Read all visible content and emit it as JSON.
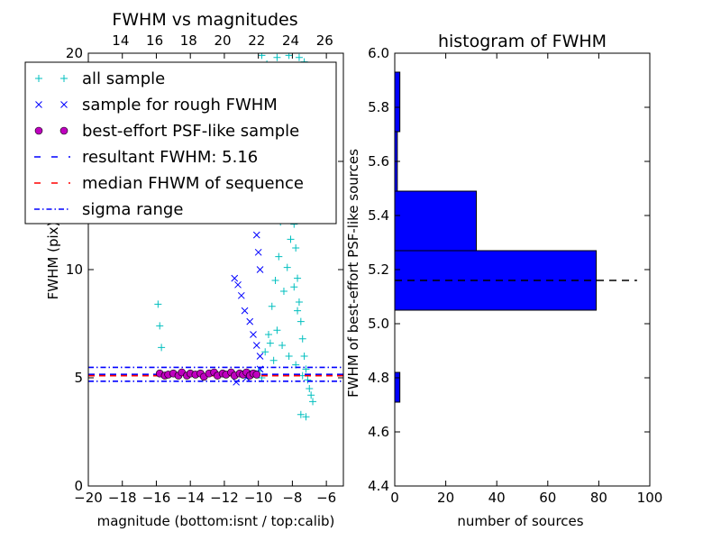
{
  "chart_data": [
    {
      "type": "scatter",
      "title": "FWHM vs magnitudes",
      "xlabel": "magnitude (bottom:isnt / top:calib)",
      "ylabel": "FWHM (pix)",
      "xlim": [
        -20,
        -5
      ],
      "ylim": [
        0,
        20
      ],
      "xticks": [
        "−20",
        "−18",
        "−16",
        "−14",
        "−12",
        "−10",
        "−8",
        "−6"
      ],
      "xtick_values": [
        -20,
        -18,
        -16,
        -14,
        -12,
        -10,
        -8,
        -6
      ],
      "yticks": [
        "0",
        "5",
        "10",
        "15",
        "20"
      ],
      "ytick_values": [
        0,
        5,
        10,
        15,
        20
      ],
      "top_xticks": [
        "14",
        "16",
        "18",
        "20",
        "22",
        "24",
        "26"
      ],
      "top_xtick_values": [
        -18.1,
        -16.1,
        -14.1,
        -12.1,
        -10.1,
        -8.1,
        -6.1
      ],
      "legend_position": "upper-left",
      "legend": [
        {
          "label": "all sample",
          "marker": "+",
          "color": "#00bfbf"
        },
        {
          "label": "sample for rough FWHM",
          "marker": "x",
          "color": "#0000ff"
        },
        {
          "label": "best-effort PSF-like sample",
          "marker": "o",
          "color": "#bf00bf"
        },
        {
          "label": "resultant FWHM: 5.16",
          "line": "dashed",
          "color": "#0000ff"
        },
        {
          "label": "median FHWM of sequence",
          "line": "dashed",
          "color": "#ff0000"
        },
        {
          "label": "sigma range",
          "line": "dashdot",
          "color": "#0000ff"
        }
      ],
      "series": [
        {
          "name": "all sample",
          "points": [
            [
              -15.9,
              8.4
            ],
            [
              -15.8,
              7.4
            ],
            [
              -15.7,
              6.4
            ],
            [
              -9.8,
              19.9
            ],
            [
              -9.5,
              19.5
            ],
            [
              -8.9,
              19.8
            ],
            [
              -8.2,
              19.9
            ],
            [
              -7.6,
              19.8
            ],
            [
              -7.3,
              19.6
            ],
            [
              -10.0,
              5.3
            ],
            [
              -9.8,
              5.0
            ],
            [
              -9.6,
              6.2
            ],
            [
              -9.4,
              7.0
            ],
            [
              -9.2,
              8.3
            ],
            [
              -9.0,
              9.5
            ],
            [
              -8.8,
              10.6
            ],
            [
              -8.7,
              12.2
            ],
            [
              -8.6,
              13.5
            ],
            [
              -8.5,
              14.8
            ],
            [
              -8.4,
              16.5
            ],
            [
              -8.3,
              18.2
            ],
            [
              -8.2,
              17.1
            ],
            [
              -8.1,
              15.6
            ],
            [
              -8.0,
              13.8
            ],
            [
              -7.9,
              12.1
            ],
            [
              -7.8,
              11.0
            ],
            [
              -7.7,
              9.6
            ],
            [
              -7.6,
              8.5
            ],
            [
              -7.5,
              7.6
            ],
            [
              -7.4,
              6.8
            ],
            [
              -7.3,
              6.0
            ],
            [
              -7.2,
              5.4
            ],
            [
              -7.1,
              4.9
            ],
            [
              -7.0,
              4.5
            ],
            [
              -6.9,
              4.2
            ],
            [
              -6.8,
              3.9
            ],
            [
              -7.5,
              3.3
            ],
            [
              -7.2,
              3.2
            ],
            [
              -8.5,
              9.0
            ],
            [
              -8.3,
              10.1
            ],
            [
              -8.1,
              11.4
            ],
            [
              -7.9,
              9.2
            ],
            [
              -7.7,
              8.1
            ],
            [
              -8.9,
              7.2
            ],
            [
              -8.6,
              6.5
            ],
            [
              -8.2,
              6.0
            ],
            [
              -7.8,
              5.6
            ],
            [
              -7.4,
              5.1
            ],
            [
              -9.3,
              6.6
            ],
            [
              -9.1,
              5.8
            ]
          ]
        },
        {
          "name": "sample for rough FWHM",
          "points": [
            [
              -11.3,
              15.0
            ],
            [
              -10.9,
              14.6
            ],
            [
              -10.6,
              14.2
            ],
            [
              -10.4,
              13.4
            ],
            [
              -10.2,
              12.5
            ],
            [
              -10.1,
              11.6
            ],
            [
              -10.0,
              10.8
            ],
            [
              -9.9,
              10.0
            ],
            [
              -11.4,
              9.6
            ],
            [
              -11.2,
              9.3
            ],
            [
              -11.0,
              8.8
            ],
            [
              -10.8,
              8.1
            ],
            [
              -10.5,
              7.6
            ],
            [
              -10.3,
              7.0
            ],
            [
              -10.1,
              6.5
            ],
            [
              -9.9,
              6.0
            ],
            [
              -11.3,
              4.8
            ],
            [
              -10.7,
              5.0
            ],
            [
              -10.3,
              5.2
            ],
            [
              -9.9,
              5.4
            ]
          ]
        },
        {
          "name": "best-effort PSF-like sample",
          "points": [
            [
              -15.8,
              5.2
            ],
            [
              -15.5,
              5.1
            ],
            [
              -15.3,
              5.15
            ],
            [
              -15.0,
              5.2
            ],
            [
              -14.7,
              5.1
            ],
            [
              -14.5,
              5.25
            ],
            [
              -14.2,
              5.1
            ],
            [
              -14.0,
              5.2
            ],
            [
              -13.7,
              5.15
            ],
            [
              -13.4,
              5.2
            ],
            [
              -13.2,
              5.05
            ],
            [
              -12.9,
              5.2
            ],
            [
              -12.6,
              5.25
            ],
            [
              -12.4,
              5.1
            ],
            [
              -12.1,
              5.2
            ],
            [
              -11.9,
              5.15
            ],
            [
              -11.6,
              5.25
            ],
            [
              -11.4,
              5.1
            ],
            [
              -11.1,
              5.2
            ],
            [
              -10.9,
              5.15
            ],
            [
              -10.7,
              5.25
            ],
            [
              -10.5,
              5.1
            ],
            [
              -10.3,
              5.2
            ],
            [
              -10.1,
              5.15
            ]
          ]
        }
      ],
      "hlines": [
        {
          "name": "resultant FWHM",
          "y": 5.16,
          "style": "dashed",
          "color": "#0000ff"
        },
        {
          "name": "median FHWM of sequence",
          "y": 5.16,
          "style": "dashed",
          "color": "#ff0000"
        },
        {
          "name": "sigma range upper",
          "y": 5.48,
          "style": "dashdot",
          "color": "#0000ff"
        },
        {
          "name": "sigma range lower",
          "y": 4.84,
          "style": "dashdot",
          "color": "#0000ff"
        }
      ]
    },
    {
      "type": "bar",
      "orientation": "horizontal",
      "title": "histogram of FWHM",
      "xlabel": "number of sources",
      "ylabel": "FWHM of best-effort PSF-like sources",
      "xlim": [
        0,
        100
      ],
      "ylim": [
        4.4,
        6.0
      ],
      "xticks": [
        "0",
        "20",
        "40",
        "60",
        "80",
        "100"
      ],
      "xtick_values": [
        0,
        20,
        40,
        60,
        80,
        100
      ],
      "yticks": [
        "4.4",
        "4.6",
        "4.8",
        "5.0",
        "5.2",
        "5.4",
        "5.6",
        "5.8",
        "6.0"
      ],
      "ytick_values": [
        4.4,
        4.6,
        4.8,
        5.0,
        5.2,
        5.4,
        5.6,
        5.8,
        6.0
      ],
      "bar_color": "#0000ff",
      "bins": [
        {
          "low": 4.71,
          "high": 4.82,
          "count": 2
        },
        {
          "low": 5.05,
          "high": 5.27,
          "count": 79
        },
        {
          "low": 5.27,
          "high": 5.49,
          "count": 32
        },
        {
          "low": 5.49,
          "high": 5.71,
          "count": 1
        },
        {
          "low": 5.71,
          "high": 5.93,
          "count": 2
        }
      ],
      "reference_line": {
        "y": 5.16,
        "x_range": [
          0,
          95
        ],
        "style": "dashed",
        "color": "#000000"
      }
    }
  ]
}
